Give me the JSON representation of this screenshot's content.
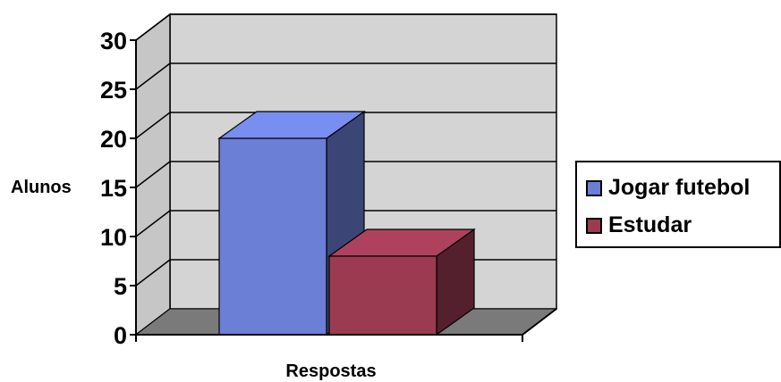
{
  "chart_data": {
    "type": "bar",
    "categories": [
      ""
    ],
    "series": [
      {
        "name": "Jogar futebol",
        "values": [
          20
        ],
        "color": "#6b7fd6"
      },
      {
        "name": "Estudar",
        "values": [
          8
        ],
        "color": "#9b3b52"
      }
    ],
    "title": "",
    "xlabel": "Respostas",
    "ylabel": "Alunos",
    "ylim": [
      0,
      30
    ],
    "yticks": [
      "0",
      "5",
      "10",
      "15",
      "20",
      "25",
      "30"
    ],
    "grid": true,
    "legend_position": "right",
    "style": "3d",
    "colors": {
      "wall": "#d4d4d4",
      "floor": "#7a7a7a",
      "gridline": "#000000"
    }
  }
}
